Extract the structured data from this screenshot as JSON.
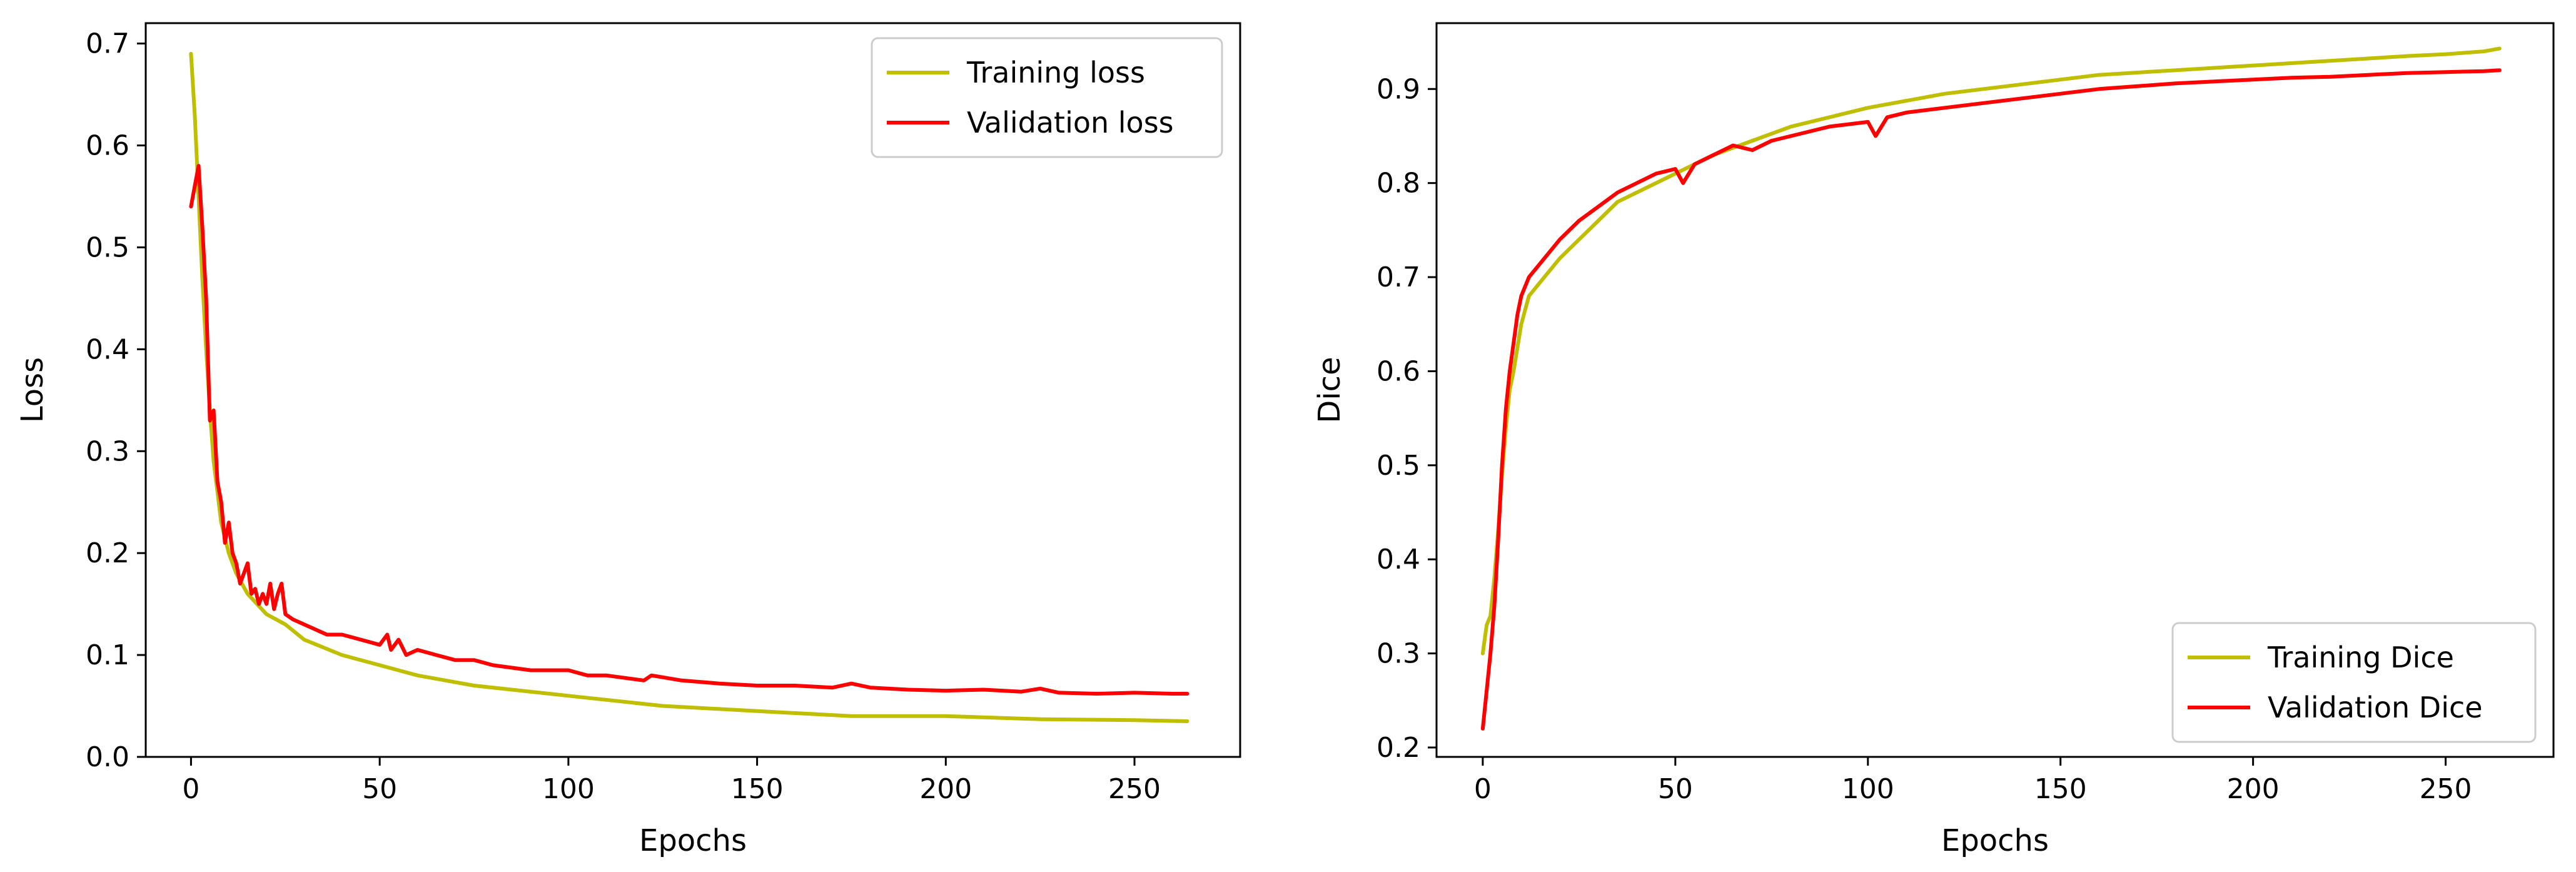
{
  "chart_data": [
    {
      "id": "loss",
      "type": "line",
      "title": "",
      "xlabel": "Epochs",
      "ylabel": "Loss",
      "xlim": [
        -12,
        278
      ],
      "ylim": [
        0.0,
        0.72
      ],
      "xticks": [
        0,
        50,
        100,
        150,
        200,
        250
      ],
      "xtick_labels": [
        "0",
        "50",
        "100",
        "150",
        "200",
        "250"
      ],
      "yticks": [
        0.0,
        0.1,
        0.2,
        0.3,
        0.4,
        0.5,
        0.6,
        0.7
      ],
      "ytick_labels": [
        "0.0",
        "0.1",
        "0.2",
        "0.3",
        "0.4",
        "0.5",
        "0.6",
        "0.7"
      ],
      "grid": false,
      "legend_position": "upper-right",
      "series": [
        {
          "name": "Training loss",
          "color": "#bfbf00",
          "x": [
            0,
            1,
            2,
            3,
            4,
            5,
            6,
            7,
            8,
            10,
            12,
            15,
            20,
            25,
            30,
            40,
            50,
            60,
            75,
            100,
            125,
            150,
            175,
            200,
            225,
            250,
            264
          ],
          "y": [
            0.69,
            0.63,
            0.55,
            0.47,
            0.4,
            0.34,
            0.29,
            0.26,
            0.23,
            0.2,
            0.18,
            0.16,
            0.14,
            0.13,
            0.115,
            0.1,
            0.09,
            0.08,
            0.07,
            0.06,
            0.05,
            0.045,
            0.04,
            0.04,
            0.037,
            0.036,
            0.035
          ]
        },
        {
          "name": "Validation loss",
          "color": "#ff0000",
          "x": [
            0,
            1,
            2,
            3,
            4,
            5,
            6,
            7,
            8,
            9,
            10,
            11,
            12,
            13,
            14,
            15,
            16,
            17,
            18,
            19,
            20,
            21,
            22,
            23,
            24,
            25,
            27,
            30,
            33,
            36,
            40,
            45,
            50,
            52,
            53,
            55,
            57,
            60,
            65,
            70,
            75,
            80,
            90,
            100,
            105,
            110,
            120,
            122,
            130,
            140,
            150,
            160,
            170,
            175,
            180,
            190,
            200,
            210,
            220,
            225,
            230,
            240,
            250,
            260,
            264
          ],
          "y": [
            0.54,
            0.56,
            0.58,
            0.52,
            0.45,
            0.33,
            0.34,
            0.27,
            0.25,
            0.21,
            0.23,
            0.2,
            0.19,
            0.17,
            0.18,
            0.19,
            0.16,
            0.165,
            0.15,
            0.16,
            0.15,
            0.17,
            0.145,
            0.16,
            0.17,
            0.14,
            0.135,
            0.13,
            0.125,
            0.12,
            0.12,
            0.115,
            0.11,
            0.12,
            0.105,
            0.115,
            0.1,
            0.105,
            0.1,
            0.095,
            0.095,
            0.09,
            0.085,
            0.085,
            0.08,
            0.08,
            0.075,
            0.08,
            0.075,
            0.072,
            0.07,
            0.07,
            0.068,
            0.072,
            0.068,
            0.066,
            0.065,
            0.066,
            0.064,
            0.067,
            0.063,
            0.062,
            0.063,
            0.062,
            0.062
          ]
        }
      ]
    },
    {
      "id": "dice",
      "type": "line",
      "title": "",
      "xlabel": "Epochs",
      "ylabel": "Dice",
      "xlim": [
        -12,
        278
      ],
      "ylim": [
        0.19,
        0.97
      ],
      "xticks": [
        0,
        50,
        100,
        150,
        200,
        250
      ],
      "xtick_labels": [
        "0",
        "50",
        "100",
        "150",
        "200",
        "250"
      ],
      "yticks": [
        0.2,
        0.3,
        0.4,
        0.5,
        0.6,
        0.7,
        0.8,
        0.9
      ],
      "ytick_labels": [
        "0.2",
        "0.3",
        "0.4",
        "0.5",
        "0.6",
        "0.7",
        "0.8",
        "0.9"
      ],
      "grid": false,
      "legend_position": "lower-right",
      "series": [
        {
          "name": "Training Dice",
          "color": "#bfbf00",
          "x": [
            0,
            1,
            2,
            3,
            4,
            5,
            6,
            7,
            8,
            10,
            12,
            14,
            16,
            18,
            20,
            25,
            30,
            35,
            40,
            50,
            60,
            70,
            80,
            90,
            100,
            120,
            140,
            160,
            180,
            200,
            220,
            240,
            250,
            260,
            264
          ],
          "y": [
            0.3,
            0.33,
            0.34,
            0.38,
            0.43,
            0.49,
            0.54,
            0.58,
            0.6,
            0.65,
            0.68,
            0.69,
            0.7,
            0.71,
            0.72,
            0.74,
            0.76,
            0.78,
            0.79,
            0.81,
            0.83,
            0.845,
            0.86,
            0.87,
            0.88,
            0.895,
            0.905,
            0.915,
            0.92,
            0.925,
            0.93,
            0.935,
            0.937,
            0.94,
            0.943
          ]
        },
        {
          "name": "Validation Dice",
          "color": "#ff0000",
          "x": [
            0,
            1,
            2,
            3,
            4,
            5,
            6,
            7,
            8,
            9,
            10,
            12,
            14,
            16,
            18,
            20,
            25,
            30,
            35,
            40,
            45,
            50,
            52,
            55,
            60,
            65,
            70,
            75,
            80,
            90,
            100,
            102,
            105,
            110,
            120,
            130,
            140,
            150,
            160,
            170,
            180,
            190,
            200,
            210,
            220,
            230,
            240,
            250,
            260,
            264
          ],
          "y": [
            0.22,
            0.26,
            0.3,
            0.35,
            0.42,
            0.5,
            0.56,
            0.6,
            0.63,
            0.66,
            0.68,
            0.7,
            0.71,
            0.72,
            0.73,
            0.74,
            0.76,
            0.775,
            0.79,
            0.8,
            0.81,
            0.815,
            0.8,
            0.82,
            0.83,
            0.84,
            0.835,
            0.845,
            0.85,
            0.86,
            0.865,
            0.85,
            0.87,
            0.875,
            0.88,
            0.885,
            0.89,
            0.895,
            0.9,
            0.903,
            0.906,
            0.908,
            0.91,
            0.912,
            0.913,
            0.915,
            0.917,
            0.918,
            0.919,
            0.92
          ]
        }
      ]
    }
  ]
}
